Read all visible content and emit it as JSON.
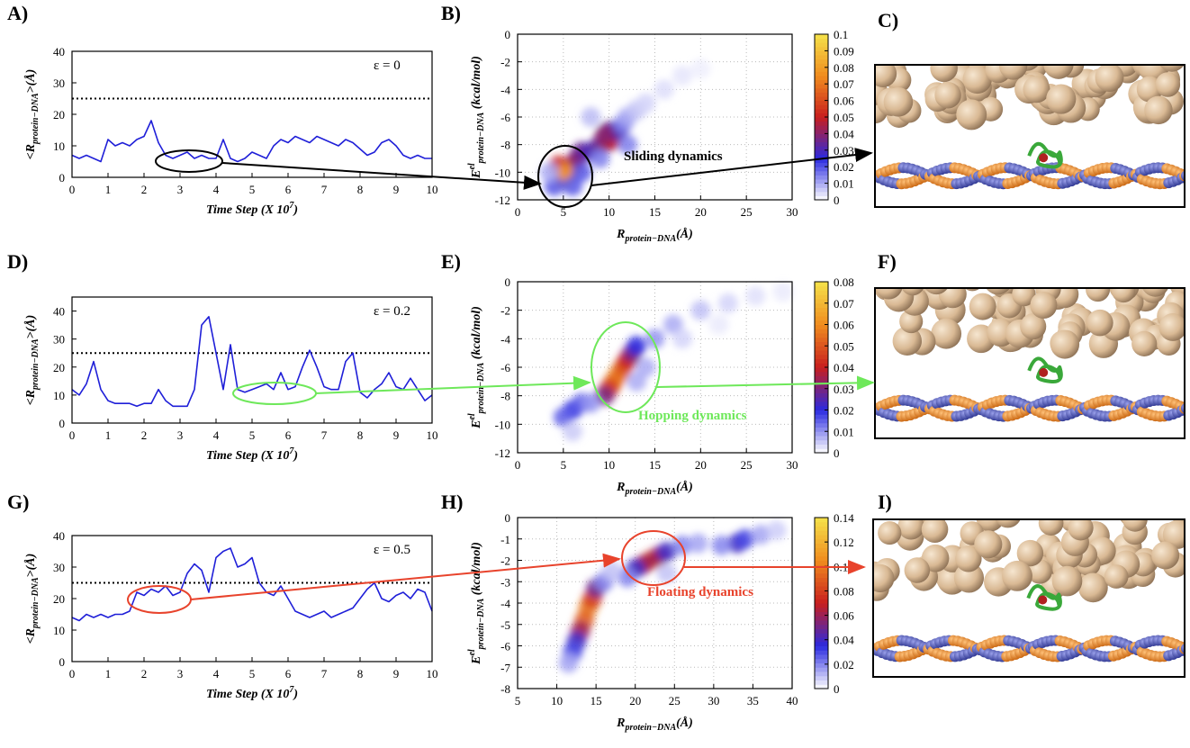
{
  "chart_data": [
    {
      "type": "line",
      "panel": "A)",
      "annotation": "ε = 0",
      "color": "#1f1fd8",
      "xlabel": [
        {
          "text": "Time Step (X 10"
        },
        {
          "text": "7",
          "style": "sup"
        },
        {
          "text": ")"
        }
      ],
      "ylabel": [
        {
          "text": "<R"
        },
        {
          "text": "protein−DNA",
          "style": "sub"
        },
        {
          "text": ">(Å)"
        }
      ],
      "xlim": [
        0,
        10
      ],
      "xticks": [
        0,
        1,
        2,
        3,
        4,
        5,
        6,
        7,
        8,
        9,
        10
      ],
      "ylim": [
        0,
        40
      ],
      "yticks": [
        0,
        10,
        20,
        30,
        40
      ],
      "threshold": 25,
      "x": [
        0,
        0.2,
        0.4,
        0.6,
        0.8,
        1.0,
        1.2,
        1.4,
        1.6,
        1.8,
        2.0,
        2.2,
        2.4,
        2.6,
        2.8,
        3.0,
        3.2,
        3.4,
        3.6,
        3.8,
        4.0,
        4.2,
        4.4,
        4.6,
        4.8,
        5.0,
        5.2,
        5.4,
        5.6,
        5.8,
        6.0,
        6.2,
        6.4,
        6.6,
        6.8,
        7.0,
        7.2,
        7.4,
        7.6,
        7.8,
        8.0,
        8.2,
        8.4,
        8.6,
        8.8,
        9.0,
        9.2,
        9.4,
        9.6,
        9.8,
        10
      ],
      "values": [
        7,
        6,
        7,
        6,
        5,
        12,
        10,
        11,
        10,
        12,
        13,
        18,
        11,
        7,
        6,
        7,
        8,
        6,
        7,
        6,
        6,
        12,
        6,
        5,
        6,
        8,
        7,
        6,
        10,
        12,
        11,
        13,
        12,
        11,
        13,
        12,
        11,
        10,
        12,
        11,
        9,
        7,
        8,
        11,
        12,
        10,
        7,
        6,
        7,
        6,
        6
      ]
    },
    {
      "type": "heatmap",
      "panel": "B)",
      "annotation": "Sliding dynamics",
      "grid": true,
      "colormap": [
        "#ffffff",
        "#2a2ae0",
        "#c81e1e",
        "#f08c1e",
        "#f5e24a"
      ],
      "xlabel": [
        {
          "text": "R"
        },
        {
          "text": "protein−DNA",
          "style": "sub"
        },
        {
          "text": "(Å)"
        }
      ],
      "ylabel": [
        {
          "text": "E"
        },
        {
          "text": "el",
          "style": "sup"
        },
        {
          "text": "protein−DNA",
          "style": "sub"
        },
        {
          "text": " (kcal/mol)"
        }
      ],
      "xlim": [
        0,
        30
      ],
      "xticks": [
        0,
        5,
        10,
        15,
        20,
        25,
        30
      ],
      "ylim": [
        -12,
        0
      ],
      "yticks": [
        -12,
        -10,
        -8,
        -6,
        -4,
        -2,
        0
      ],
      "clim": [
        0,
        0.1
      ],
      "cticks": [
        0,
        0.01,
        0.02,
        0.03,
        0.04,
        0.05,
        0.06,
        0.07,
        0.08,
        0.09,
        0.1
      ],
      "x": [
        5,
        5,
        4.5,
        6,
        5.5,
        6.5,
        7,
        8,
        9,
        10,
        10.5,
        10,
        11,
        9.5,
        11.5,
        12,
        13,
        14,
        16,
        18,
        20,
        8,
        4,
        6,
        12,
        7,
        3.5,
        9
      ],
      "y": [
        -10.5,
        -10,
        -9.5,
        -9.5,
        -10,
        -9,
        -8.5,
        -8.5,
        -8,
        -7.8,
        -7.5,
        -7,
        -7,
        -7.3,
        -6.5,
        -6,
        -5.5,
        -5,
        -4,
        -3,
        -2.5,
        -6,
        -11,
        -11,
        -8,
        -10,
        -10,
        -9
      ],
      "values": [
        0.09,
        0.07,
        0.05,
        0.05,
        0.08,
        0.04,
        0.035,
        0.03,
        0.035,
        0.045,
        0.05,
        0.035,
        0.03,
        0.04,
        0.015,
        0.01,
        0.007,
        0.005,
        0.004,
        0.003,
        0.002,
        0.008,
        0.02,
        0.02,
        0.015,
        0.02,
        0.01,
        0.015
      ]
    },
    {
      "type": "line",
      "panel": "D)",
      "annotation": "ε = 0.2",
      "color": "#1f1fd8",
      "xlabel": [
        {
          "text": "Time Step (X 10"
        },
        {
          "text": "7",
          "style": "sup"
        },
        {
          "text": ")"
        }
      ],
      "ylabel": [
        {
          "text": "<R"
        },
        {
          "text": "protein−DNA",
          "style": "sub"
        },
        {
          "text": ">(Å)"
        }
      ],
      "xlim": [
        0,
        10
      ],
      "xticks": [
        0,
        1,
        2,
        3,
        4,
        5,
        6,
        7,
        8,
        9,
        10
      ],
      "ylim": [
        0,
        45
      ],
      "yticks": [
        0,
        10,
        20,
        30,
        40
      ],
      "threshold": 25,
      "x": [
        0,
        0.2,
        0.4,
        0.6,
        0.8,
        1.0,
        1.2,
        1.4,
        1.6,
        1.8,
        2.0,
        2.2,
        2.4,
        2.6,
        2.8,
        3.0,
        3.2,
        3.4,
        3.6,
        3.8,
        4.0,
        4.2,
        4.4,
        4.6,
        4.8,
        5.0,
        5.2,
        5.4,
        5.6,
        5.8,
        6.0,
        6.2,
        6.4,
        6.6,
        6.8,
        7.0,
        7.2,
        7.4,
        7.6,
        7.8,
        8.0,
        8.2,
        8.4,
        8.6,
        8.8,
        9.0,
        9.2,
        9.4,
        9.6,
        9.8,
        10
      ],
      "values": [
        12,
        10,
        14,
        22,
        12,
        8,
        7,
        7,
        7,
        6,
        7,
        7,
        12,
        8,
        6,
        6,
        6,
        12,
        35,
        38,
        25,
        12,
        28,
        12,
        11,
        12,
        13,
        14,
        12,
        18,
        12,
        13,
        20,
        26,
        20,
        13,
        12,
        12,
        22,
        25,
        11,
        9,
        12,
        14,
        18,
        13,
        12,
        16,
        12,
        8,
        10
      ]
    },
    {
      "type": "heatmap",
      "panel": "E)",
      "annotation": "Hopping dynamics",
      "grid": true,
      "colormap": [
        "#ffffff",
        "#2a2ae0",
        "#c81e1e",
        "#f08c1e",
        "#f5e24a"
      ],
      "xlabel": [
        {
          "text": "R"
        },
        {
          "text": "protein−DNA",
          "style": "sub"
        },
        {
          "text": "(Å)"
        }
      ],
      "ylabel": [
        {
          "text": "E"
        },
        {
          "text": "el",
          "style": "sup"
        },
        {
          "text": "protein−DNA",
          "style": "sub"
        },
        {
          "text": " (kcal/mol)"
        }
      ],
      "xlim": [
        0,
        30
      ],
      "xticks": [
        0,
        5,
        10,
        15,
        20,
        25,
        30
      ],
      "ylim": [
        -12,
        0
      ],
      "yticks": [
        -12,
        -10,
        -8,
        -6,
        -4,
        -2,
        0
      ],
      "clim": [
        0,
        0.08
      ],
      "cticks": [
        0,
        0.01,
        0.02,
        0.03,
        0.04,
        0.05,
        0.06,
        0.07,
        0.08
      ],
      "x": [
        11,
        10.5,
        11.5,
        12,
        10,
        9.5,
        12.5,
        13,
        6,
        5,
        7,
        8,
        15,
        17,
        20,
        23,
        26,
        29,
        18,
        22,
        14,
        6,
        13
      ],
      "y": [
        -6.5,
        -7,
        -6,
        -5.5,
        -7.5,
        -8,
        -5,
        -4.5,
        -9,
        -9.5,
        -8.5,
        -8.5,
        -4,
        -3,
        -2,
        -1.5,
        -1,
        -0.7,
        -4,
        -3,
        -6,
        -10.5,
        -7
      ],
      "values": [
        0.06,
        0.055,
        0.05,
        0.04,
        0.045,
        0.03,
        0.03,
        0.02,
        0.02,
        0.015,
        0.015,
        0.01,
        0.01,
        0.008,
        0.006,
        0.004,
        0.003,
        0.002,
        0.004,
        0.002,
        0.008,
        0.005,
        0.008
      ]
    },
    {
      "type": "line",
      "panel": "G)",
      "annotation": "ε = 0.5",
      "color": "#1f1fd8",
      "xlabel": [
        {
          "text": "Time Step (X 10"
        },
        {
          "text": "7",
          "style": "sup"
        },
        {
          "text": ")"
        }
      ],
      "ylabel": [
        {
          "text": "<R"
        },
        {
          "text": "protein−DNA",
          "style": "sub"
        },
        {
          "text": ">(Å)"
        }
      ],
      "xlim": [
        0,
        10
      ],
      "xticks": [
        0,
        1,
        2,
        3,
        4,
        5,
        6,
        7,
        8,
        9,
        10
      ],
      "ylim": [
        0,
        40
      ],
      "yticks": [
        0,
        10,
        20,
        30,
        40
      ],
      "threshold": 25,
      "x": [
        0,
        0.2,
        0.4,
        0.6,
        0.8,
        1.0,
        1.2,
        1.4,
        1.6,
        1.8,
        2.0,
        2.2,
        2.4,
        2.6,
        2.8,
        3.0,
        3.2,
        3.4,
        3.6,
        3.8,
        4.0,
        4.2,
        4.4,
        4.6,
        4.8,
        5.0,
        5.2,
        5.4,
        5.6,
        5.8,
        6.0,
        6.2,
        6.4,
        6.6,
        6.8,
        7.0,
        7.2,
        7.4,
        7.6,
        7.8,
        8.0,
        8.2,
        8.4,
        8.6,
        8.8,
        9.0,
        9.2,
        9.4,
        9.6,
        9.8,
        10
      ],
      "values": [
        14,
        13,
        15,
        14,
        15,
        14,
        15,
        15,
        16,
        22,
        21,
        23,
        22,
        24,
        21,
        22,
        28,
        31,
        29,
        22,
        33,
        35,
        36,
        30,
        31,
        33,
        25,
        22,
        21,
        24,
        20,
        16,
        15,
        14,
        15,
        16,
        14,
        15,
        16,
        17,
        20,
        23,
        25,
        20,
        19,
        21,
        22,
        20,
        23,
        22,
        16
      ]
    },
    {
      "type": "heatmap",
      "panel": "H)",
      "annotation": "Floating dynamics",
      "grid": true,
      "colormap": [
        "#ffffff",
        "#2a2ae0",
        "#c81e1e",
        "#f08c1e",
        "#f5e24a"
      ],
      "xlabel": [
        {
          "text": "R"
        },
        {
          "text": "protein−DNA",
          "style": "sub"
        },
        {
          "text": "(Å)"
        }
      ],
      "ylabel": [
        {
          "text": "E"
        },
        {
          "text": "el",
          "style": "sup"
        },
        {
          "text": "protein−DNA",
          "style": "sub"
        },
        {
          "text": " (kcal/mol)"
        }
      ],
      "xlim": [
        5,
        40
      ],
      "xticks": [
        5,
        10,
        15,
        20,
        25,
        30,
        35,
        40
      ],
      "ylim": [
        -8,
        0
      ],
      "yticks": [
        -8,
        -7,
        -6,
        -5,
        -4,
        -3,
        -2,
        -1,
        0
      ],
      "clim": [
        0,
        0.14
      ],
      "cticks": [
        0,
        0.02,
        0.04,
        0.06,
        0.08,
        0.1,
        0.12,
        0.14
      ],
      "x": [
        14,
        13.5,
        14.5,
        13,
        12.5,
        15,
        12,
        16,
        22,
        21,
        23,
        20,
        24,
        19,
        26,
        28,
        33,
        34,
        31,
        36,
        38,
        11.5,
        17,
        24
      ],
      "y": [
        -4.2,
        -4.8,
        -3.8,
        -5.3,
        -5.8,
        -3.3,
        -6.3,
        -3,
        -2,
        -2.2,
        -1.8,
        -2.4,
        -1.6,
        -2.8,
        -1.3,
        -1.2,
        -1.2,
        -1,
        -1.3,
        -0.8,
        -0.6,
        -6.8,
        -2.5,
        -2.6
      ],
      "values": [
        0.1,
        0.09,
        0.08,
        0.06,
        0.04,
        0.05,
        0.03,
        0.02,
        0.08,
        0.06,
        0.06,
        0.04,
        0.04,
        0.02,
        0.02,
        0.015,
        0.04,
        0.03,
        0.02,
        0.015,
        0.008,
        0.015,
        0.01,
        0.01
      ]
    }
  ],
  "images": [
    {
      "panel": "C)"
    },
    {
      "panel": "F)"
    },
    {
      "panel": "I)"
    }
  ]
}
